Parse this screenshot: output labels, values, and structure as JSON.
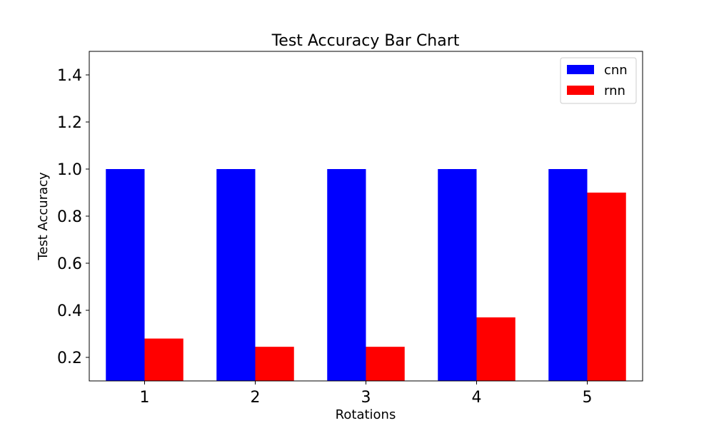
{
  "chart_data": {
    "type": "bar",
    "title": "Test Accuracy Bar Chart",
    "xlabel": "Rotations",
    "ylabel": "Test Accuracy",
    "categories": [
      "1",
      "2",
      "3",
      "4",
      "5"
    ],
    "series": [
      {
        "name": "cnn",
        "color": "#0000ff",
        "values": [
          1.0,
          1.0,
          1.0,
          1.0,
          1.0
        ]
      },
      {
        "name": "rnn",
        "color": "#ff0000",
        "values": [
          0.28,
          0.245,
          0.245,
          0.37,
          0.9
        ]
      }
    ],
    "ylim": [
      0.1,
      1.5
    ],
    "yticks": [
      "0.2",
      "0.4",
      "0.6",
      "0.8",
      "1.0",
      "1.2",
      "1.4"
    ],
    "grid": false,
    "legend_position": "top-right"
  }
}
